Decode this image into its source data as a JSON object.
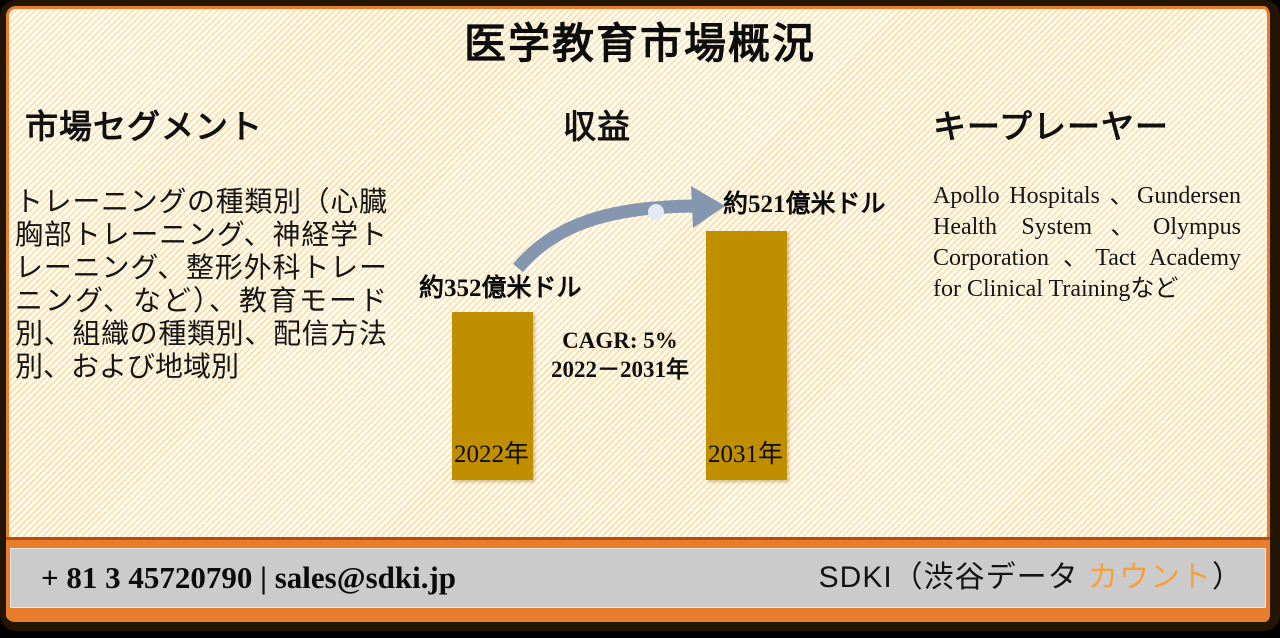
{
  "title": "医学教育市場概況",
  "columns": {
    "segments": {
      "heading": "市場セグメント",
      "body": "トレーニングの種類別（心臓胸部トレーニング、神経学トレーニング、整形外科トレーニング、など）、教育モード別、組織の種類別、配信方法別、および地域別"
    },
    "players": {
      "heading": "キープレーヤー",
      "body": "Apollo Hospitals 、Gundersen Health System、Olympus Corporation 、Tact Academy for Clinical Trainingなど"
    }
  },
  "chart_data": {
    "type": "bar",
    "title": "収益",
    "categories": [
      "2022年",
      "2031年"
    ],
    "values": [
      352,
      521
    ],
    "unit": "億米ドル",
    "value_labels": [
      "約352億米ドル",
      "約521億米ドル"
    ],
    "annotation": {
      "line1": "CAGR: 5%",
      "line2": "2022－2031年"
    },
    "ylim": [
      0,
      521
    ],
    "bar_color": "#BF8F00",
    "arrow_color": "#8496B0",
    "legend": "none",
    "grid": false
  },
  "footer": {
    "contact": "+ 81 3 45720790 | sales@sdki.jp",
    "brand": {
      "prefix": "SDKI（渋谷データ ",
      "highlight": "カウント",
      "suffix": "）"
    }
  },
  "colors": {
    "background_cream": "#FBF3DC",
    "pattern_orange": "#F4C46E",
    "accent_orange": "#E87E2B",
    "border_dark": "#241503",
    "bar_gold": "#BF8F00",
    "arrow_blue": "#8496B0",
    "footer_gray": "#CBCBCB",
    "brand_highlight": "#F6A03C"
  }
}
